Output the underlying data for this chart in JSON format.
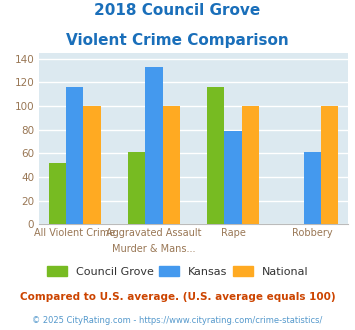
{
  "title_line1": "2018 Council Grove",
  "title_line2": "Violent Crime Comparison",
  "title_color": "#1a6fba",
  "cat_top_labels": [
    "",
    "Aggravated Assault",
    "",
    ""
  ],
  "cat_bot_labels": [
    "All Violent Crime",
    "Murder & Mans...",
    "Rape",
    "Robbery"
  ],
  "series": {
    "Council Grove": [
      52,
      61,
      116,
      0
    ],
    "Kansas": [
      116,
      133,
      79,
      61
    ],
    "National": [
      100,
      100,
      100,
      100
    ]
  },
  "series_colors": {
    "Council Grove": "#77bb22",
    "Kansas": "#4499ee",
    "National": "#ffaa22"
  },
  "ylim": [
    0,
    145
  ],
  "yticks": [
    0,
    20,
    40,
    60,
    80,
    100,
    120,
    140
  ],
  "plot_bg_color": "#dce9f0",
  "fig_bg_color": "#ffffff",
  "grid_color": "#ffffff",
  "footnote1": "Compared to U.S. average. (U.S. average equals 100)",
  "footnote2": "© 2025 CityRating.com - https://www.cityrating.com/crime-statistics/",
  "footnote1_color": "#cc4400",
  "footnote2_color": "#5599cc",
  "tick_label_color": "#997755",
  "bar_width": 0.22,
  "group_positions": [
    0,
    1,
    2,
    3
  ]
}
